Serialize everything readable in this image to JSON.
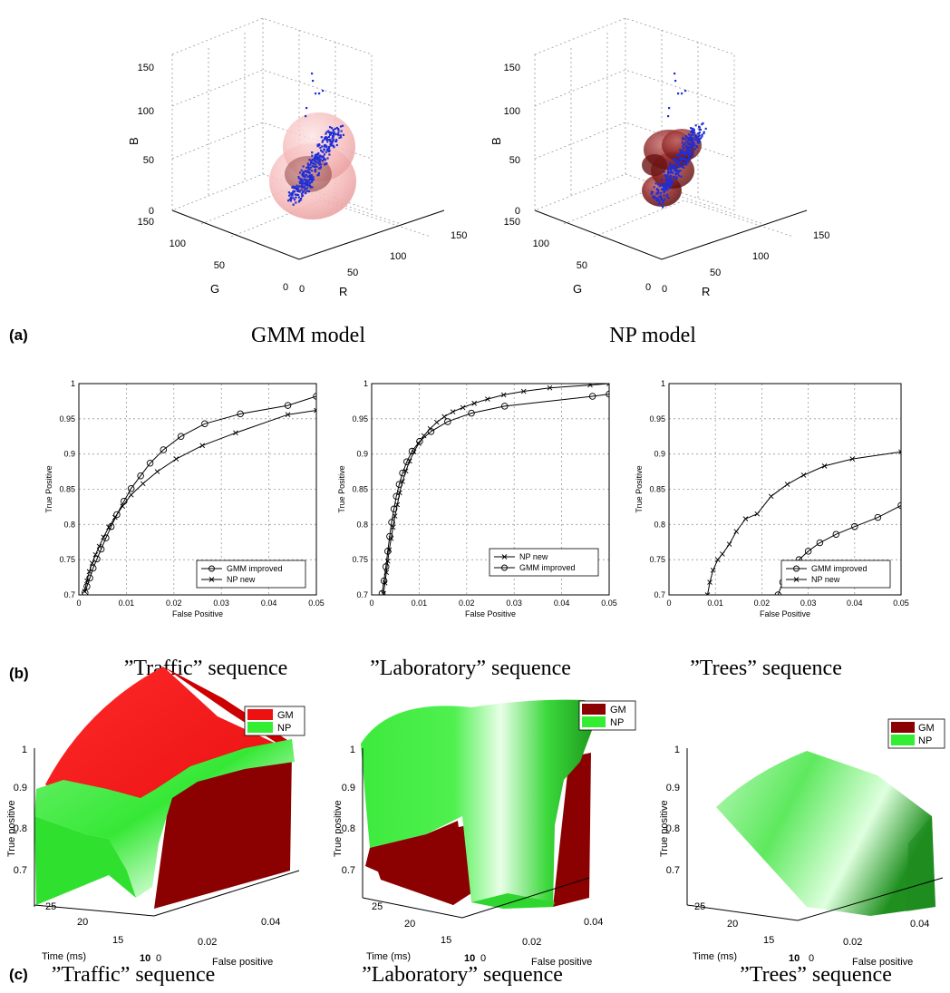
{
  "panel_a": {
    "letter": "(a)",
    "captions": [
      "GMM model",
      "NP model"
    ]
  },
  "panel_b": {
    "letter": "(b)",
    "captions": [
      "”Traffic” sequence",
      "”Laboratory” sequence",
      "”Trees” sequence"
    ]
  },
  "panel_c": {
    "letter": "(c)",
    "captions": [
      "”Traffic” sequence",
      "”Laboratory” sequence",
      "”Trees” sequence"
    ]
  },
  "colors": {
    "points": "#1f2fd6",
    "gmm_sphere": "#f4b6b6",
    "np_blob": "#8a1f1f",
    "gm_red": "#ee1111",
    "np_green": "#33ee33",
    "dark_red": "#8b0000"
  },
  "chart_data": [
    {
      "type": "scatter",
      "subtype": "3d",
      "caption": "GMM model",
      "axis_labels": {
        "x": "R",
        "y": "G",
        "z": "B"
      },
      "x_ticks": [
        "0",
        "50",
        "100",
        "150"
      ],
      "y_ticks": [
        "0",
        "50",
        "100",
        "150"
      ],
      "z_ticks": [
        "0",
        "50",
        "100",
        "150"
      ],
      "zlim": [
        0,
        150
      ],
      "grid": true
    },
    {
      "type": "scatter",
      "subtype": "3d",
      "caption": "NP model",
      "axis_labels": {
        "x": "R",
        "y": "G",
        "z": "B"
      },
      "x_ticks": [
        "0",
        "50",
        "100",
        "150"
      ],
      "y_ticks": [
        "0",
        "50",
        "100",
        "150"
      ],
      "z_ticks": [
        "0",
        "50",
        "100",
        "150"
      ],
      "zlim": [
        0,
        150
      ],
      "grid": true
    },
    {
      "type": "line",
      "caption": "”Traffic” sequence",
      "xlabel": "False Positive",
      "ylabel": "True Positive",
      "xlim": [
        0,
        0.05
      ],
      "ylim": [
        0.7,
        1
      ],
      "x_ticks": [
        "0",
        "0.01",
        "0.02",
        "0.03",
        "0.04",
        "0.05"
      ],
      "y_ticks": [
        "0.7",
        "0.75",
        "0.8",
        "0.85",
        "0.9",
        "0.95",
        "1"
      ],
      "grid": true,
      "legend_position": "bottom-right",
      "series": [
        {
          "name": "GMM improved",
          "marker": "o",
          "x": [
            0.0013,
            0.0017,
            0.0023,
            0.003,
            0.0038,
            0.0047,
            0.0057,
            0.0068,
            0.008,
            0.0095,
            0.011,
            0.013,
            0.015,
            0.0178,
            0.0215,
            0.0265,
            0.034,
            0.044,
            0.05
          ],
          "y": [
            0.703,
            0.712,
            0.724,
            0.738,
            0.751,
            0.765,
            0.781,
            0.797,
            0.814,
            0.833,
            0.851,
            0.869,
            0.887,
            0.906,
            0.925,
            0.943,
            0.957,
            0.969,
            0.982
          ]
        },
        {
          "name": "NP new",
          "marker": "x",
          "x": [
            0.0012,
            0.0017,
            0.0022,
            0.0028,
            0.0035,
            0.0043,
            0.0052,
            0.0063,
            0.0076,
            0.0092,
            0.011,
            0.0135,
            0.0165,
            0.0205,
            0.026,
            0.033,
            0.044,
            0.05
          ],
          "y": [
            0.705,
            0.72,
            0.733,
            0.745,
            0.757,
            0.769,
            0.782,
            0.796,
            0.81,
            0.826,
            0.842,
            0.858,
            0.875,
            0.893,
            0.912,
            0.93,
            0.956,
            0.962
          ]
        }
      ]
    },
    {
      "type": "line",
      "caption": "”Laboratory” sequence",
      "xlabel": "False Positive",
      "ylabel": "True Positive",
      "xlim": [
        0,
        0.05
      ],
      "ylim": [
        0.7,
        1
      ],
      "x_ticks": [
        "0",
        "0.01",
        "0.02",
        "0.03",
        "0.04",
        "0.05"
      ],
      "y_ticks": [
        "0.7",
        "0.75",
        "0.8",
        "0.85",
        "0.9",
        "0.95",
        "1"
      ],
      "grid": true,
      "legend_position": "bottom-right",
      "series": [
        {
          "name": "NP new",
          "marker": "x",
          "x": [
            0.0025,
            0.0028,
            0.0031,
            0.0034,
            0.0037,
            0.0041,
            0.0045,
            0.0049,
            0.0054,
            0.0059,
            0.0065,
            0.0072,
            0.008,
            0.0089,
            0.0099,
            0.011,
            0.0123,
            0.0137,
            0.0153,
            0.0171,
            0.0192,
            0.0216,
            0.0244,
            0.0278,
            0.032,
            0.0375,
            0.046,
            0.05
          ],
          "y": [
            0.702,
            0.717,
            0.732,
            0.748,
            0.764,
            0.78,
            0.796,
            0.812,
            0.828,
            0.845,
            0.861,
            0.876,
            0.89,
            0.903,
            0.915,
            0.926,
            0.936,
            0.945,
            0.953,
            0.96,
            0.966,
            0.972,
            0.978,
            0.984,
            0.989,
            0.994,
            0.998,
            1.0
          ]
        },
        {
          "name": "GMM improved",
          "marker": "o",
          "x": [
            0.0022,
            0.0026,
            0.003,
            0.0034,
            0.0038,
            0.0042,
            0.0047,
            0.0052,
            0.0058,
            0.0065,
            0.0074,
            0.0085,
            0.0101,
            0.0125,
            0.016,
            0.021,
            0.028,
            0.0465,
            0.05
          ],
          "y": [
            0.702,
            0.72,
            0.74,
            0.762,
            0.783,
            0.803,
            0.822,
            0.84,
            0.857,
            0.873,
            0.889,
            0.904,
            0.918,
            0.932,
            0.946,
            0.958,
            0.968,
            0.982,
            0.985
          ]
        }
      ]
    },
    {
      "type": "line",
      "caption": "”Trees” sequence",
      "xlabel": "False Positive",
      "ylabel": "True Positive",
      "xlim": [
        0,
        0.05
      ],
      "ylim": [
        0.7,
        1
      ],
      "x_ticks": [
        "0",
        "0.01",
        "0.02",
        "0.03",
        "0.04",
        "0.05"
      ],
      "y_ticks": [
        "0.7",
        "0.75",
        "0.8",
        "0.85",
        "0.9",
        "0.95",
        "1"
      ],
      "grid": true,
      "legend_position": "bottom-right",
      "series": [
        {
          "name": "GMM improved",
          "marker": "o",
          "x": [
            0.0235,
            0.0245,
            0.0265,
            0.028,
            0.03,
            0.0325,
            0.036,
            0.04,
            0.045,
            0.05
          ],
          "y": [
            0.7,
            0.718,
            0.738,
            0.75,
            0.762,
            0.774,
            0.786,
            0.797,
            0.81,
            0.827
          ]
        },
        {
          "name": "NP new",
          "marker": "x",
          "x": [
            0.0083,
            0.0088,
            0.0095,
            0.0105,
            0.0115,
            0.013,
            0.0145,
            0.0165,
            0.019,
            0.022,
            0.0255,
            0.029,
            0.0335,
            0.0395,
            0.05
          ],
          "y": [
            0.7,
            0.718,
            0.735,
            0.75,
            0.758,
            0.772,
            0.79,
            0.808,
            0.815,
            0.84,
            0.857,
            0.87,
            0.883,
            0.893,
            0.903
          ]
        }
      ]
    },
    {
      "type": "area",
      "subtype": "3d-surface",
      "caption": "”Traffic” sequence",
      "xlabel": "False positive",
      "ylabel": "Time (ms)",
      "zlabel": "True positive",
      "x_ticks": [
        "0",
        "0.02",
        "0.04"
      ],
      "y_ticks": [
        "10",
        "15",
        "20",
        "25"
      ],
      "z_ticks": [
        "0.7",
        "0.8",
        "0.9",
        "1"
      ],
      "legend": [
        "GM",
        "NP"
      ],
      "legend_colors": [
        "#ee1111",
        "#33ee33"
      ],
      "legend_position": "top-right"
    },
    {
      "type": "area",
      "subtype": "3d-surface",
      "caption": "”Laboratory” sequence",
      "xlabel": "False positive",
      "ylabel": "Time (ms)",
      "zlabel": "True positive",
      "x_ticks": [
        "0",
        "0.02",
        "0.04"
      ],
      "y_ticks": [
        "10",
        "15",
        "20",
        "25"
      ],
      "z_ticks": [
        "0.7",
        "0.8",
        "0.9",
        "1"
      ],
      "legend": [
        "GM",
        "NP"
      ],
      "legend_colors": [
        "#8b0000",
        "#33ee33"
      ],
      "legend_position": "top-right"
    },
    {
      "type": "area",
      "subtype": "3d-surface",
      "caption": "”Trees” sequence",
      "xlabel": "False positive",
      "ylabel": "Time (ms)",
      "zlabel": "True positive",
      "x_ticks": [
        "0",
        "0.02",
        "0.04"
      ],
      "y_ticks": [
        "10",
        "15",
        "20",
        "25"
      ],
      "z_ticks": [
        "0.7",
        "0.8",
        "0.9",
        "1"
      ],
      "legend": [
        "GM",
        "NP"
      ],
      "legend_colors": [
        "#8b0000",
        "#33ee33"
      ],
      "legend_position": "top-right"
    }
  ]
}
